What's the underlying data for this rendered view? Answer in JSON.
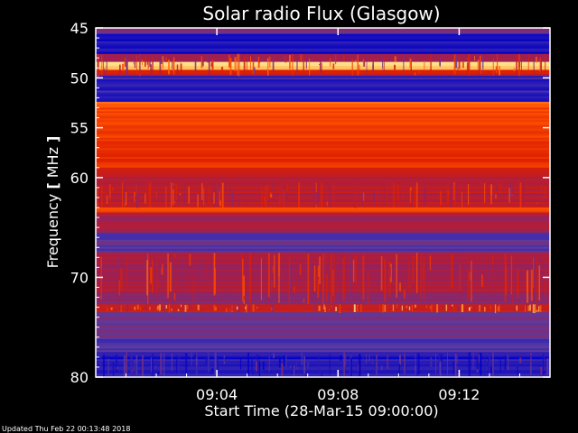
{
  "chart_data": {
    "type": "heatmap",
    "title": "Solar radio Flux (Glasgow)",
    "xlabel": "Start Time (28-Mar-15 09:00:00)",
    "ylabel_text": "Frequency ",
    "ylabel_unit": "MHz",
    "footer": "Updated Thu Feb 22 00:13:48 2018",
    "x_ticks": [
      "09:04",
      "09:08",
      "09:12"
    ],
    "x_tick_minutes": [
      4,
      8,
      12
    ],
    "x_range_minutes": [
      0,
      15
    ],
    "y_ticks": [
      "45",
      "50",
      "55",
      "60",
      "70",
      "80"
    ],
    "y_tick_values": [
      45,
      50,
      55,
      60,
      70,
      80
    ],
    "y_range": [
      45,
      80
    ],
    "colormap": [
      "#0000c8",
      "#5a3ca0",
      "#a01e50",
      "#dc1e00",
      "#ff5000",
      "#ff9b32",
      "#fffaaa"
    ],
    "bands": [
      {
        "from": 45.0,
        "to": 45.6,
        "level": 0.25
      },
      {
        "from": 45.6,
        "to": 47.6,
        "level": 0.05
      },
      {
        "from": 47.6,
        "to": 48.4,
        "level": 0.35
      },
      {
        "from": 48.4,
        "to": 49.2,
        "level": 0.95
      },
      {
        "from": 49.2,
        "to": 49.8,
        "level": 0.45
      },
      {
        "from": 49.8,
        "to": 52.4,
        "level": 0.08
      },
      {
        "from": 52.4,
        "to": 53.0,
        "level": 0.7
      },
      {
        "from": 53.0,
        "to": 56.0,
        "level": 0.62
      },
      {
        "from": 56.0,
        "to": 59.0,
        "level": 0.55
      },
      {
        "from": 59.0,
        "to": 60.5,
        "level": 0.42
      },
      {
        "from": 60.5,
        "to": 63.0,
        "level": 0.4
      },
      {
        "from": 63.0,
        "to": 63.5,
        "level": 0.65
      },
      {
        "from": 63.5,
        "to": 65.5,
        "level": 0.35
      },
      {
        "from": 65.5,
        "to": 67.5,
        "level": 0.18
      },
      {
        "from": 67.5,
        "to": 68.3,
        "level": 0.4
      },
      {
        "from": 68.3,
        "to": 71.5,
        "level": 0.36
      },
      {
        "from": 71.5,
        "to": 72.7,
        "level": 0.3
      },
      {
        "from": 72.7,
        "to": 73.5,
        "level": 0.47
      },
      {
        "from": 73.5,
        "to": 76.0,
        "level": 0.2
      },
      {
        "from": 76.0,
        "to": 77.5,
        "level": 0.12
      },
      {
        "from": 77.5,
        "to": 80.0,
        "level": 0.06
      }
    ]
  }
}
